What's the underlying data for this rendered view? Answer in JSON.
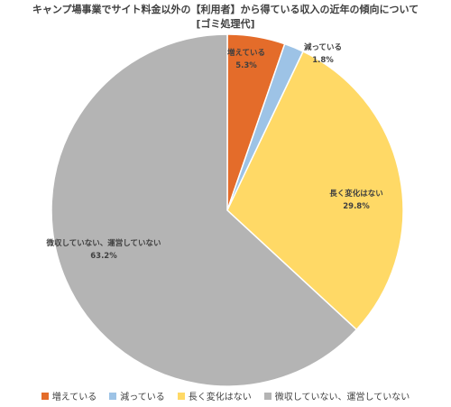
{
  "chart_data": {
    "type": "pie",
    "title": "キャンプ場事業でサイト料金以外の【利用者】から得ている収入の近年の傾向について",
    "subtitle": "[ゴミ処理代]",
    "categories": [
      "増えている",
      "減っている",
      "長く変化はない",
      "微収していない、運営していない"
    ],
    "values": [
      5.3,
      1.8,
      29.8,
      63.2
    ],
    "value_labels": [
      "5.3%",
      "1.8%",
      "29.8%",
      "63.2%"
    ],
    "colors": [
      "#e46c2a",
      "#9dc3e6",
      "#ffd966",
      "#b4b4b4"
    ]
  }
}
